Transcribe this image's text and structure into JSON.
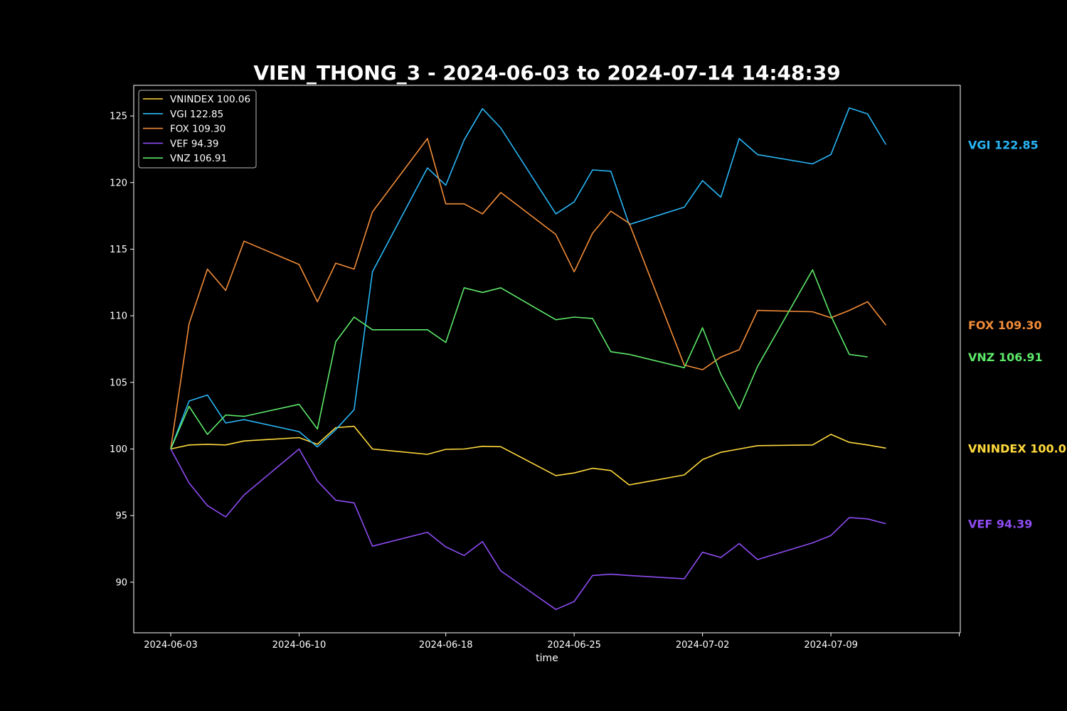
{
  "chart_data": {
    "type": "line",
    "title": "VIEN_THONG_3 - 2024-06-03 to 2024-07-14 14:48:39",
    "xlabel": "time",
    "ylabel": "",
    "ylim": [
      86.2,
      127.3
    ],
    "yticks": [
      "90",
      "95",
      "100",
      "105",
      "110",
      "115",
      "120",
      "125"
    ],
    "xticks": [
      "2024-06-03",
      "2024-06-10",
      "2024-06-18",
      "2024-06-25",
      "2024-07-02",
      "2024-07-09"
    ],
    "grid": false,
    "legend_position": "top-left",
    "background": "#000000",
    "x": [
      "2024-06-03",
      "2024-06-04",
      "2024-06-05",
      "2024-06-06",
      "2024-06-07",
      "2024-06-10",
      "2024-06-11",
      "2024-06-12",
      "2024-06-13",
      "2024-06-14",
      "2024-06-17",
      "2024-06-18",
      "2024-06-19",
      "2024-06-20",
      "2024-06-21",
      "2024-06-24",
      "2024-06-25",
      "2024-06-26",
      "2024-06-27",
      "2024-06-28",
      "2024-07-01",
      "2024-07-02",
      "2024-07-03",
      "2024-07-04",
      "2024-07-05",
      "2024-07-08",
      "2024-07-09",
      "2024-07-10",
      "2024-07-11",
      "2024-07-12",
      "2024-07-14"
    ],
    "series": [
      {
        "name": "VNINDEX",
        "legend": "VNINDEX 100.06",
        "end_label": "VNINDEX 100.06",
        "color": "#ffd93d",
        "values": [
          100.0,
          100.3,
          100.35,
          100.3,
          100.6,
          100.85,
          100.35,
          101.6,
          101.7,
          100.0,
          99.6,
          99.97,
          100.0,
          100.2,
          100.17,
          98.0,
          98.2,
          98.55,
          98.38,
          97.3,
          98.05,
          99.2,
          99.75,
          100.0,
          100.25,
          100.3,
          101.1,
          100.5,
          100.3,
          100.06,
          null
        ]
      },
      {
        "name": "VGI",
        "legend": "VGI 122.85",
        "end_label": "VGI 122.85",
        "color": "#29b6f6",
        "values": [
          100.0,
          103.6,
          104.05,
          101.95,
          102.2,
          101.3,
          100.15,
          101.45,
          102.95,
          113.3,
          121.1,
          119.8,
          123.2,
          125.55,
          124.1,
          117.65,
          118.55,
          120.95,
          120.85,
          116.85,
          118.15,
          120.15,
          118.9,
          123.3,
          122.1,
          121.4,
          122.1,
          125.6,
          125.15,
          122.85,
          null
        ]
      },
      {
        "name": "FOX",
        "legend": "FOX 109.30",
        "end_label": "FOX 109.30",
        "color": "#f28c38",
        "values": [
          100.0,
          109.4,
          113.5,
          111.9,
          115.6,
          113.85,
          111.05,
          113.95,
          113.5,
          117.8,
          123.3,
          118.4,
          118.4,
          117.65,
          119.25,
          116.1,
          113.3,
          116.2,
          117.85,
          116.95,
          106.3,
          105.95,
          106.9,
          107.45,
          110.4,
          110.3,
          109.85,
          110.4,
          111.05,
          109.3,
          null
        ]
      },
      {
        "name": "VEF",
        "legend": "VEF 94.39",
        "end_label": "VEF 94.39",
        "color": "#8e4cf2",
        "values": [
          100.0,
          97.45,
          95.75,
          94.9,
          96.55,
          100.0,
          97.6,
          96.15,
          95.95,
          92.7,
          93.75,
          92.65,
          92.0,
          93.05,
          90.85,
          87.95,
          88.55,
          90.5,
          90.6,
          90.5,
          90.25,
          92.25,
          91.85,
          92.9,
          91.7,
          92.95,
          93.5,
          94.85,
          94.75,
          94.39,
          null
        ]
      },
      {
        "name": "VNZ",
        "legend": "VNZ 106.91",
        "end_label": "VNZ 106.91",
        "color": "#5de86a",
        "values": [
          100.0,
          103.2,
          101.1,
          102.55,
          102.45,
          103.35,
          101.5,
          108.05,
          109.9,
          108.95,
          108.95,
          108.0,
          112.1,
          111.75,
          112.1,
          109.7,
          109.9,
          109.8,
          107.3,
          107.1,
          106.1,
          109.1,
          105.6,
          103.0,
          106.2,
          113.45,
          110.0,
          107.1,
          106.91,
          null,
          null
        ]
      }
    ]
  }
}
